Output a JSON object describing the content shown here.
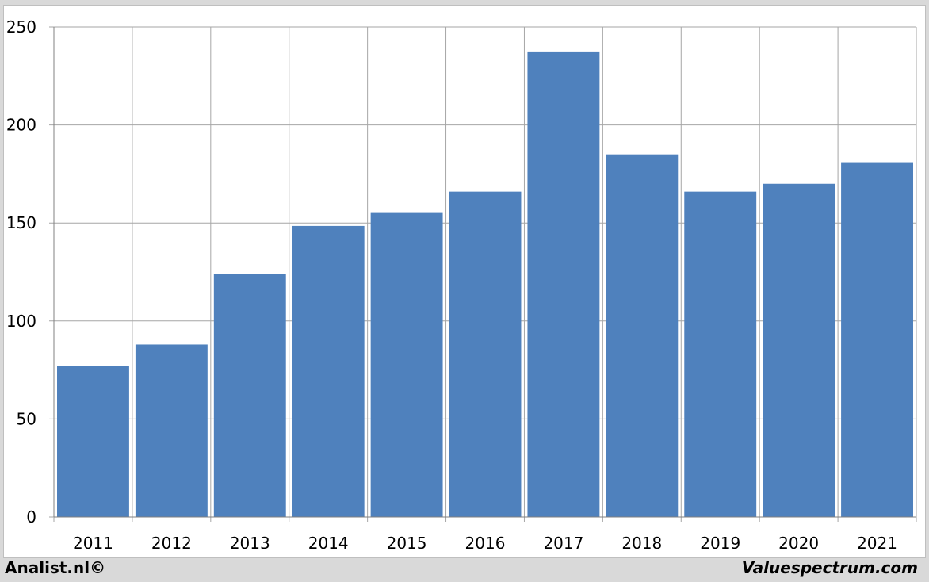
{
  "chart_data": {
    "type": "bar",
    "categories": [
      "2011",
      "2012",
      "2013",
      "2014",
      "2015",
      "2016",
      "2017",
      "2018",
      "2019",
      "2020",
      "2021"
    ],
    "values": [
      77,
      88,
      124,
      148.5,
      155.5,
      166,
      237.5,
      185,
      166,
      170,
      181
    ],
    "title": "",
    "xlabel": "",
    "ylabel": "",
    "ylim": [
      0,
      250
    ],
    "yticks": [
      0,
      50,
      100,
      150,
      200,
      250
    ],
    "grid": true,
    "bar_color": "#4f81bd",
    "grid_color": "#a6a6a6"
  },
  "footer": {
    "left_text": "Analist.nl©",
    "right_text": "Valuespectrum.com"
  }
}
